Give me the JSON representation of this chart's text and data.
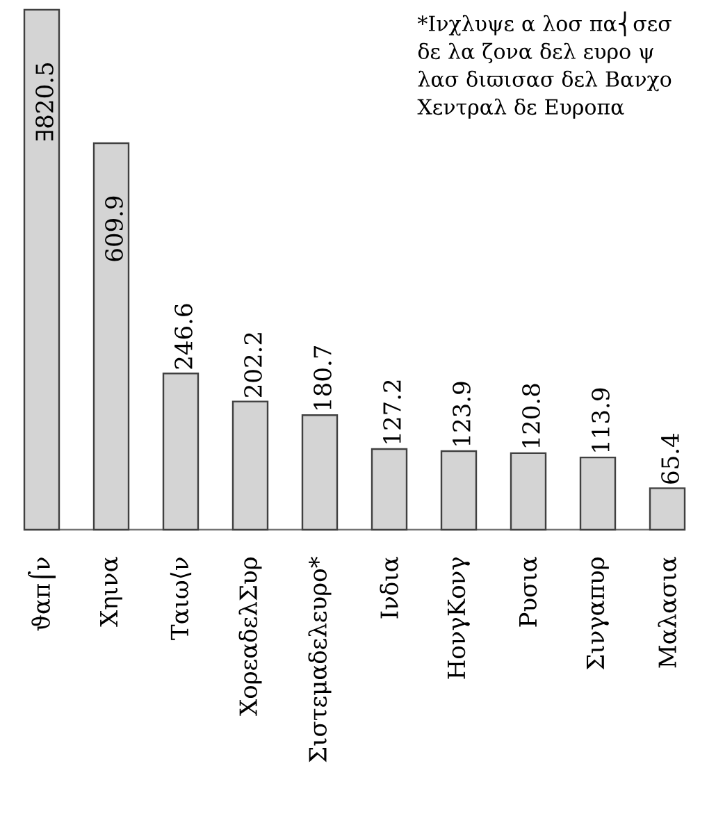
{
  "chart_data": {
    "type": "bar",
    "categories": [
      "ϑαπ⌠ν",
      "Χηινα",
      "Ταιω⟨ν",
      "ΧορεαδελΣυρ",
      "Σιστεμαδελευρο*",
      "Ινδια",
      "ΗονγΚονγ",
      "Ρυσια",
      "Σινγαπυρ",
      "Μαλασια"
    ],
    "values": [
      820.5,
      609.9,
      246.6,
      202.2,
      180.7,
      127.2,
      123.9,
      120.8,
      113.9,
      65.4
    ],
    "value_labels": [
      "∃820.5",
      "609.9",
      "246.6",
      "202.2",
      "180.7",
      "127.2",
      "123.9",
      "120.8",
      "113.9",
      "65.4"
    ],
    "color": "#d4d4d4",
    "annotations": [
      "*Ινχλυψε α λοσ πα⎨σεσ δε λα ζονα δελ ευρο ψ λασ διϖισασ δελ Βανχο Χεντραλ δε Ευροπα"
    ]
  }
}
